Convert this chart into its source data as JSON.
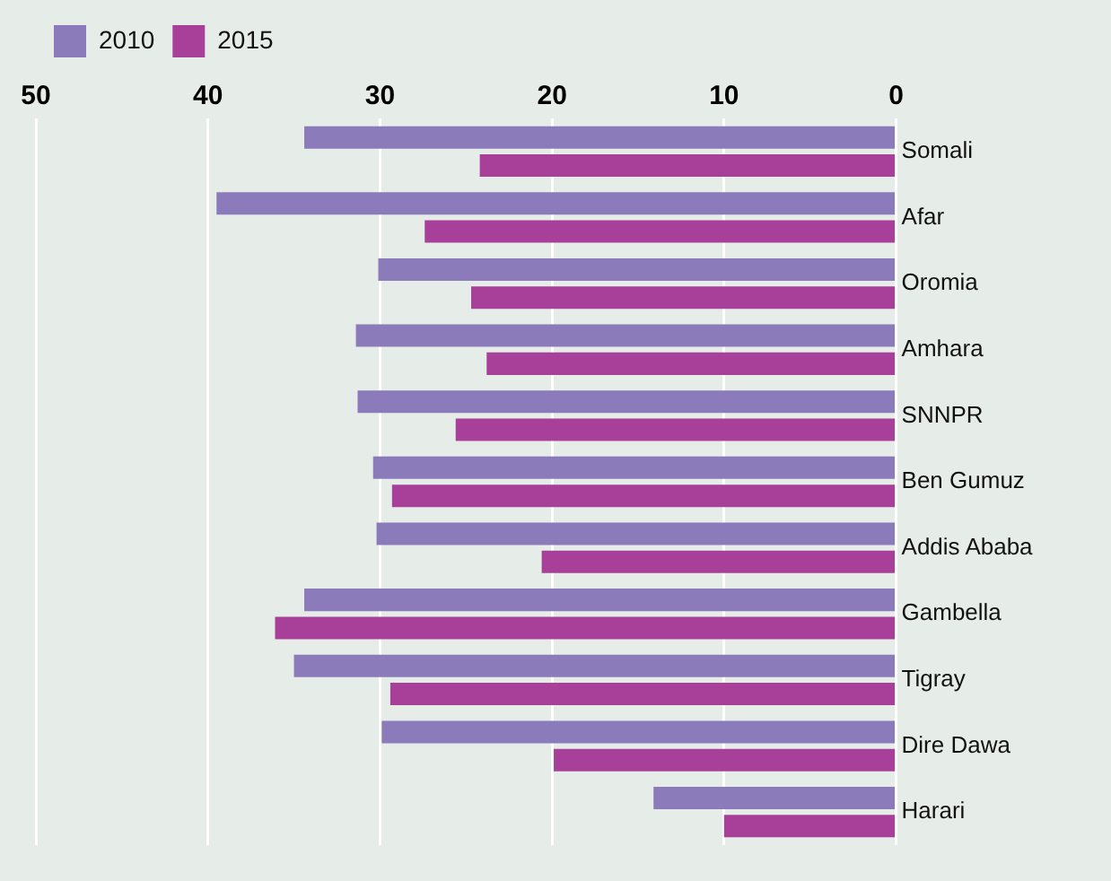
{
  "chart_data": {
    "type": "bar",
    "orientation": "horizontal",
    "categories": [
      "Somali",
      "Afar",
      "Oromia",
      "Amhara",
      "SNNPR",
      "Ben Gumuz",
      "Addis Ababa",
      "Gambella",
      "Tigray",
      "Dire Dawa",
      "Harari"
    ],
    "series": [
      {
        "name": "2010",
        "color": "#8b7bbb",
        "values": [
          34.4,
          39.5,
          30.1,
          31.4,
          31.3,
          30.4,
          30.2,
          34.4,
          35.0,
          29.9,
          14.1
        ]
      },
      {
        "name": "2015",
        "color": "#a8409a",
        "values": [
          24.2,
          27.4,
          24.7,
          23.8,
          25.6,
          29.3,
          20.6,
          36.1,
          29.4,
          19.9,
          10.0
        ]
      }
    ],
    "xlim": [
      50,
      0
    ],
    "xticks": [
      0,
      10,
      20,
      30,
      40,
      50
    ],
    "grid": "x",
    "legend": "top left"
  }
}
